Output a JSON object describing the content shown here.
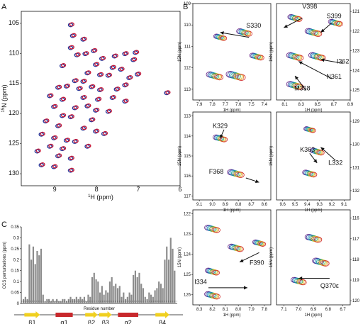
{
  "panel_letters": {
    "a": "A",
    "b": "B",
    "c": "C"
  },
  "chart_data": [
    {
      "type": "scatter",
      "id": "A",
      "xlabel_sup": "1",
      "xlabel": "H (ppm)",
      "ylabel_sup": "15",
      "ylabel": "N (ppm)",
      "x_reversed": true,
      "xlim": [
        6.0,
        9.8
      ],
      "ylim": [
        103,
        132
      ],
      "x_ticks": [
        "9",
        "8",
        "7",
        "6"
      ],
      "y_ticks": [
        "105",
        "110",
        "115",
        "120",
        "125",
        "130"
      ],
      "series_colors": [
        "#2b3a9b",
        "#c41a3a"
      ],
      "peaks_x": [
        8.6,
        8.55,
        8.3,
        8.6,
        8.45,
        8.25,
        8.05,
        7.85,
        7.55,
        7.3,
        7.1,
        8.8,
        8.0,
        7.6,
        7.4,
        8.2,
        7.9,
        7.7,
        7.2,
        8.5,
        8.3,
        8.9,
        8.7,
        8.4,
        8.1,
        7.9,
        7.5,
        9.1,
        8.8,
        8.3,
        7.95,
        7.6,
        7.3,
        9.0,
        8.5,
        8.2,
        8.0,
        7.7,
        8.8,
        8.6,
        8.1,
        9.2,
        8.9,
        8.3,
        8.0,
        7.8,
        9.3,
        9.0,
        8.7,
        8.5,
        9.1,
        8.8,
        8.2,
        9.4,
        8.9,
        8.6,
        9.3,
        9.0,
        8.6,
        7.0,
        6.3,
        7.3,
        7.05
      ],
      "peaks_y": [
        105.2,
        107.0,
        107.6,
        109.0,
        110.2,
        110.0,
        109.5,
        110.8,
        110.4,
        110.0,
        111.0,
        112.0,
        111.8,
        112.3,
        112.6,
        113.2,
        113.5,
        113.6,
        114.0,
        114.5,
        114.6,
        115.6,
        115.4,
        115.8,
        115.5,
        116.0,
        115.9,
        117.0,
        117.6,
        117.3,
        117.6,
        117.3,
        117.9,
        118.8,
        119.0,
        118.7,
        119.4,
        119.6,
        120.3,
        120.5,
        121.0,
        121.2,
        122.0,
        122.4,
        122.9,
        123.3,
        123.4,
        124.0,
        124.4,
        124.6,
        125.4,
        125.8,
        125.4,
        126.2,
        127.0,
        127.4,
        128.5,
        128.8,
        129.4,
        113.4,
        116.5,
        115.2,
        109.8
      ]
    },
    {
      "type": "scatter",
      "id": "B1",
      "xlim": [
        7.35,
        7.95
      ],
      "ylim": [
        109,
        113.5
      ],
      "x_reversed": true,
      "x_ticks": [
        "7.9",
        "7.8",
        "7.7",
        "7.6",
        "7.5",
        "7.4"
      ],
      "y_ticks": [
        "109",
        "110",
        "111",
        "112",
        "113"
      ],
      "labels": [
        "S330"
      ]
    },
    {
      "type": "scatter",
      "id": "B2",
      "xlim": [
        8.0,
        8.9
      ],
      "ylim": [
        120.6,
        125.5
      ],
      "x_reversed": false,
      "x_ticks": [
        "8.1",
        "8.3",
        "8.5",
        "8.7",
        "8.9"
      ],
      "y_ticks": [
        "121",
        "122",
        "123",
        "124",
        "125"
      ],
      "labels": [
        "V398",
        "S399",
        "I362",
        "N361",
        "M358"
      ]
    },
    {
      "type": "scatter",
      "id": "B3",
      "xlim": [
        8.55,
        9.15
      ],
      "ylim": [
        112.8,
        117.2
      ],
      "x_reversed": true,
      "x_ticks": [
        "9.1",
        "9.0",
        "8.9",
        "8.8",
        "8.7",
        "8.6"
      ],
      "y_ticks": [
        "113",
        "114",
        "115",
        "116",
        "117"
      ],
      "labels": [
        "K329",
        "F368"
      ]
    },
    {
      "type": "scatter",
      "id": "B4",
      "xlim": [
        9.05,
        9.65
      ],
      "ylim": [
        128.6,
        132.4
      ],
      "x_reversed": true,
      "x_ticks": [
        "9.6",
        "9.5",
        "9.4",
        "9.3",
        "9.2",
        "9.1"
      ],
      "y_ticks": [
        "129",
        "130",
        "131",
        "132"
      ],
      "labels": [
        "K363",
        "L332"
      ]
    },
    {
      "type": "scatter",
      "id": "B5",
      "xlim": [
        7.75,
        8.35
      ],
      "ylim": [
        121.8,
        126.5
      ],
      "x_reversed": true,
      "xlabel_sup": "1",
      "xlabel": "H (ppm)",
      "x_ticks": [
        "8.3",
        "8.2",
        "8.1",
        "8.0",
        "7.9",
        "7.8"
      ],
      "y_ticks": [
        "122",
        "123",
        "124",
        "125",
        "126"
      ],
      "labels": [
        "F390",
        "I334"
      ]
    },
    {
      "type": "scatter",
      "id": "B6",
      "xlim": [
        6.65,
        7.15
      ],
      "ylim": [
        115.6,
        120.2
      ],
      "x_reversed": true,
      "xlabel_sup": "1",
      "xlabel": "H (ppm)",
      "x_ticks": [
        "7.1",
        "7.0",
        "6.9",
        "6.8",
        "6.7"
      ],
      "y_ticks": [
        "116",
        "117",
        "118",
        "119",
        "120"
      ],
      "labels": [
        "Q370ε"
      ]
    },
    {
      "type": "bar",
      "id": "C",
      "ylabel": "CCS perturbations (ppm)",
      "xlabel": "Residue number",
      "ylim": [
        0,
        0.35
      ],
      "y_ticks": [
        "0",
        "0.05",
        "0.1",
        "0.15",
        "0.2",
        "0.25",
        "0.3",
        "0.35"
      ],
      "threshold": 0.01,
      "values": [
        0.02,
        0.03,
        0.02,
        0.27,
        0.2,
        0.26,
        0.18,
        0.24,
        0.22,
        0.25,
        0.04,
        0.01,
        0.02,
        0.02,
        0.01,
        0.02,
        0.01,
        0.02,
        0.01,
        0.01,
        0.02,
        0.02,
        0.01,
        0.02,
        0.03,
        0.02,
        0.02,
        0.03,
        0.02,
        0.03,
        0.02,
        0.03,
        0.01,
        0.04,
        0.03,
        0.12,
        0.14,
        0.11,
        0.1,
        0.05,
        0.08,
        0.04,
        0.06,
        0.05,
        0.1,
        0.12,
        0.08,
        0.09,
        0.07,
        0.08,
        0.03,
        0.05,
        0.02,
        0.03,
        0.05,
        0.04,
        0.13,
        0.15,
        0.12,
        0.14,
        0.09,
        0.07,
        0.03,
        0.02,
        0.05,
        0.04,
        0.03,
        0.06,
        0.07,
        0.1,
        0.09,
        0.07,
        0.2,
        0.26,
        0.2,
        0.3,
        0.25,
        0.15
      ],
      "secondary_structure": [
        {
          "type": "strand",
          "label": "β1",
          "start": 0.02,
          "end": 0.12
        },
        {
          "type": "helix",
          "label": "α1",
          "start": 0.22,
          "end": 0.33
        },
        {
          "type": "strand",
          "label": "β2",
          "start": 0.41,
          "end": 0.49
        },
        {
          "type": "strand",
          "label": "β3",
          "start": 0.5,
          "end": 0.58
        },
        {
          "type": "helix",
          "label": "α2",
          "start": 0.62,
          "end": 0.75
        },
        {
          "type": "strand",
          "label": "β4",
          "start": 0.86,
          "end": 0.95
        }
      ],
      "colors": {
        "bar": "#8c8c8c",
        "helix": "#c8282c",
        "strand": "#f0d020"
      }
    }
  ]
}
